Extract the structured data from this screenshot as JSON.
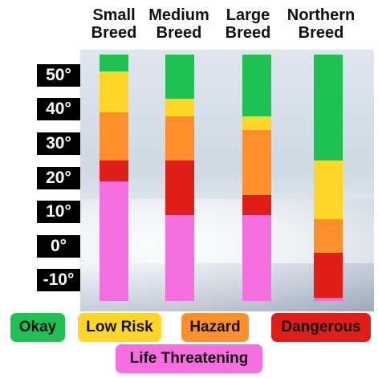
{
  "chart_data": {
    "type": "bar",
    "stacked": true,
    "categories": [
      [
        "Small",
        "Breed"
      ],
      [
        "Medium",
        "Breed"
      ],
      [
        "Large",
        "Breed"
      ],
      [
        "Northern",
        "Breed"
      ]
    ],
    "y_ticks": [
      "50°",
      "40°",
      "30°",
      "20°",
      "10°",
      "0°",
      "-10°"
    ],
    "y_tick_values": [
      50,
      40,
      30,
      20,
      10,
      0,
      -10
    ],
    "ylim": [
      -16,
      56
    ],
    "grid": false,
    "legend_placement": "bottom",
    "legend": [
      {
        "key": "okay",
        "label": "Okay",
        "color": "#1ec253"
      },
      {
        "key": "low_risk",
        "label": "Low Risk",
        "color": "#ffd528"
      },
      {
        "key": "hazard",
        "label": "Hazard",
        "color": "#ff8f2a"
      },
      {
        "key": "dangerous",
        "label": "Dangerous",
        "color": "#e01e17"
      },
      {
        "key": "life",
        "label": "Life Threatening",
        "color": "#f56fe0"
      }
    ],
    "series": [
      {
        "bands": [
          {
            "key": "okay",
            "from": 56,
            "to": 51
          },
          {
            "key": "low_risk",
            "from": 51,
            "to": 39
          },
          {
            "key": "hazard",
            "from": 39,
            "to": 25
          },
          {
            "key": "dangerous",
            "from": 25,
            "to": 19
          },
          {
            "key": "life",
            "from": 19,
            "to": -16
          }
        ]
      },
      {
        "bands": [
          {
            "key": "okay",
            "from": 56,
            "to": 43
          },
          {
            "key": "low_risk",
            "from": 43,
            "to": 38
          },
          {
            "key": "hazard",
            "from": 38,
            "to": 25
          },
          {
            "key": "dangerous",
            "from": 25,
            "to": 9
          },
          {
            "key": "life",
            "from": 9,
            "to": -16
          }
        ]
      },
      {
        "bands": [
          {
            "key": "okay",
            "from": 56,
            "to": 38
          },
          {
            "key": "low_risk",
            "from": 38,
            "to": 34
          },
          {
            "key": "hazard",
            "from": 34,
            "to": 15
          },
          {
            "key": "dangerous",
            "from": 15,
            "to": 9
          },
          {
            "key": "life",
            "from": 9,
            "to": -16
          }
        ]
      },
      {
        "bands": [
          {
            "key": "okay",
            "from": 56,
            "to": 25
          },
          {
            "key": "low_risk",
            "from": 25,
            "to": 8
          },
          {
            "key": "hazard",
            "from": 8,
            "to": -2
          },
          {
            "key": "dangerous",
            "from": -2,
            "to": -15
          },
          {
            "key": "life",
            "from": -15,
            "to": -16
          }
        ]
      }
    ]
  }
}
